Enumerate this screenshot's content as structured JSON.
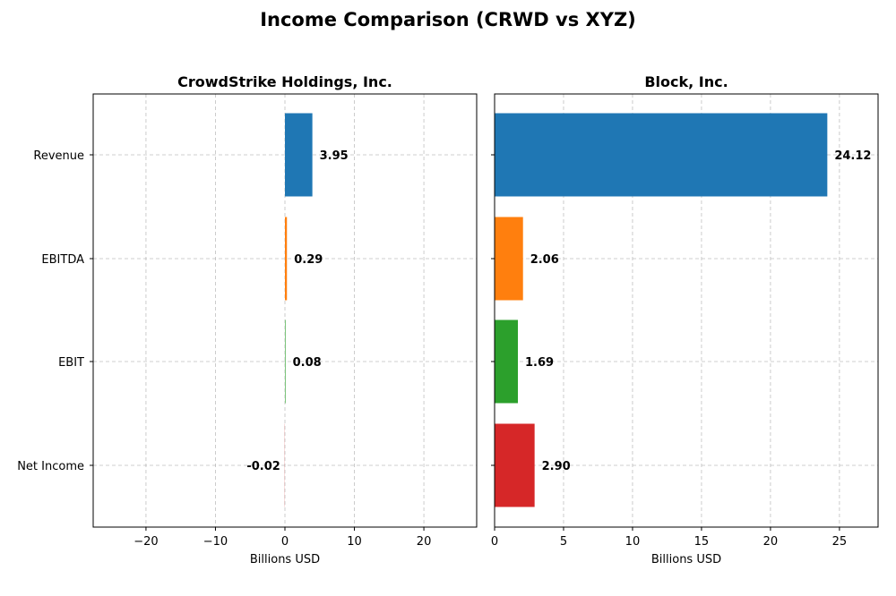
{
  "title": "Income Comparison (CRWD vs XYZ)",
  "chart_data": [
    {
      "type": "bar",
      "orientation": "horizontal",
      "title": "CrowdStrike Holdings, Inc.",
      "xlabel": "Billions USD",
      "ylabel": "",
      "categories": [
        "Revenue",
        "EBITDA",
        "EBIT",
        "Net Income"
      ],
      "values": [
        3.95,
        0.29,
        0.08,
        -0.02
      ],
      "value_labels": [
        "3.95",
        "0.29",
        "0.08",
        "-0.02"
      ],
      "colors": [
        "#1f77b4",
        "#ff7f0e",
        "#2ca02c",
        "#d62728"
      ],
      "xlim": [
        -27.6,
        27.6
      ],
      "xticks": [
        -20,
        -10,
        0,
        10,
        20
      ],
      "xtick_labels": [
        "−20",
        "−10",
        "0",
        "10",
        "20"
      ],
      "grid": true
    },
    {
      "type": "bar",
      "orientation": "horizontal",
      "title": "Block, Inc.",
      "xlabel": "Billions USD",
      "ylabel": "",
      "categories": [
        "Revenue",
        "EBITDA",
        "EBIT",
        "Net Income"
      ],
      "values": [
        24.12,
        2.06,
        1.69,
        2.9
      ],
      "value_labels": [
        "24.12",
        "2.06",
        "1.69",
        "2.90"
      ],
      "colors": [
        "#1f77b4",
        "#ff7f0e",
        "#2ca02c",
        "#d62728"
      ],
      "xlim": [
        0,
        27.8
      ],
      "xticks": [
        0,
        5,
        10,
        15,
        20,
        25
      ],
      "xtick_labels": [
        "0",
        "5",
        "10",
        "15",
        "20",
        "25"
      ],
      "grid": true
    }
  ]
}
